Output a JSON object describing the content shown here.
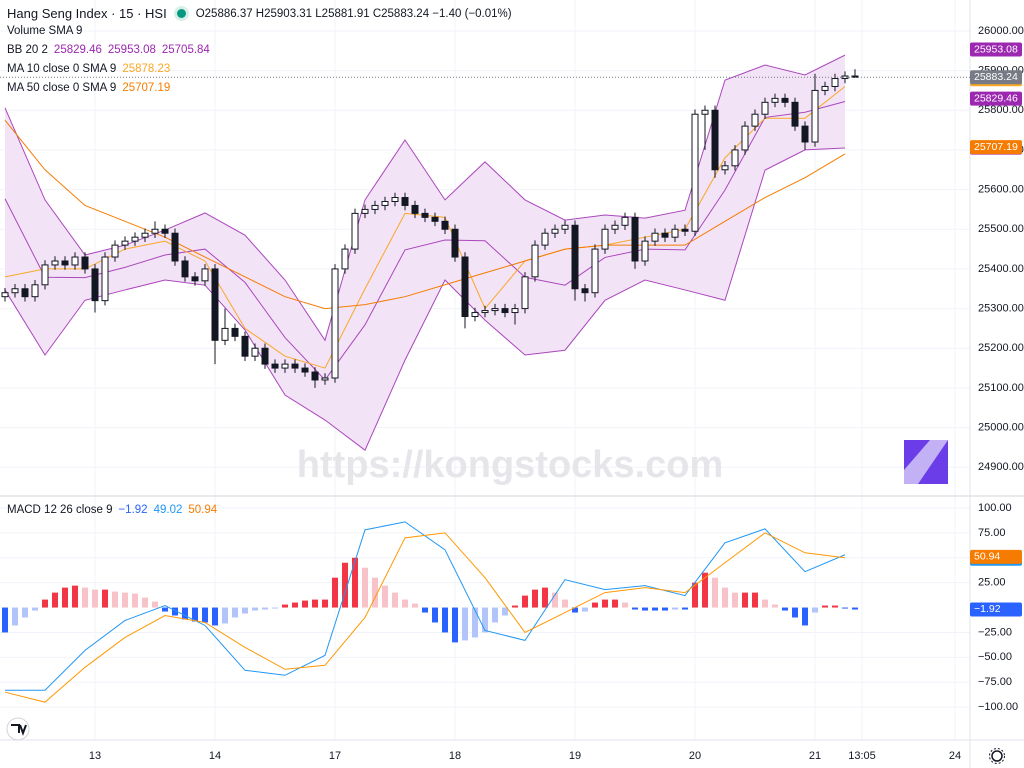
{
  "chart_data": {
    "type": "candlestick",
    "title": "Hang Seng Index · 15 · HSI",
    "ohlc_text": "O25886.37 H25903.31 L25881.91 C25883.24 −1.40 (−0.01%)",
    "volume_label": "Volume SMA 9",
    "watermark": "https://kongstocks.com",
    "up_color": "#ffffff",
    "down_color": "#131722",
    "wick_color": "#131722",
    "candles": {
      "open": [
        25330,
        25340,
        25350,
        25330,
        25360,
        25410,
        25420,
        25410,
        25430,
        25400,
        25320,
        25430,
        25460,
        25470,
        25480,
        25490,
        25500,
        25490,
        25420,
        25380,
        25370,
        25400,
        25220,
        25250,
        25230,
        25180,
        25200,
        25160,
        25150,
        25160,
        25150,
        25140,
        25120,
        25125,
        25400,
        25450,
        25540,
        25550,
        25560,
        25570,
        25580,
        25560,
        25540,
        25530,
        25520,
        25500,
        25430,
        25280,
        25290,
        25295,
        25300,
        25290,
        25300,
        25380,
        25460,
        25490,
        25500,
        25510,
        25350,
        25340,
        25450,
        25500,
        25510,
        25530,
        25420,
        25470,
        25490,
        25480,
        25500,
        25495,
        25790,
        25800,
        25650,
        25660,
        25700,
        25760,
        25790,
        25820,
        25830,
        25820,
        25760,
        25720,
        25850,
        25860,
        25880,
        25886.37
      ],
      "high": [
        25352,
        25362,
        25362,
        25372,
        25422,
        25432,
        25432,
        25442,
        25442,
        25412,
        25442,
        25472,
        25482,
        25492,
        25502,
        25520,
        25512,
        25502,
        25432,
        25392,
        25412,
        25412,
        25300,
        25262,
        25242,
        25212,
        25212,
        25172,
        25172,
        25172,
        25162,
        25152,
        25137,
        25412,
        25462,
        25552,
        25562,
        25572,
        25582,
        25592,
        25592,
        25572,
        25552,
        25542,
        25532,
        25512,
        25442,
        25302,
        25307,
        25312,
        25312,
        25312,
        25392,
        25472,
        25502,
        25512,
        25522,
        25522,
        25362,
        25462,
        25512,
        25522,
        25542,
        25542,
        25482,
        25502,
        25502,
        25512,
        25512,
        25802,
        25812,
        25812,
        25672,
        25712,
        25772,
        25802,
        25832,
        25842,
        25842,
        25832,
        25772,
        25892,
        25872,
        25892,
        25898,
        25903.31
      ],
      "low": [
        25318,
        25328,
        25318,
        25318,
        25348,
        25398,
        25398,
        25398,
        25388,
        25290,
        25308,
        25418,
        25448,
        25458,
        25468,
        25478,
        25478,
        25408,
        25368,
        25358,
        25358,
        25160,
        25208,
        25218,
        25168,
        25168,
        25148,
        25138,
        25138,
        25138,
        25128,
        25100,
        25108,
        25113,
        25388,
        25438,
        25528,
        25538,
        25548,
        25558,
        25548,
        25528,
        25518,
        25508,
        25488,
        25418,
        25250,
        25268,
        25278,
        25283,
        25278,
        25260,
        25288,
        25368,
        25448,
        25478,
        25488,
        25320,
        25318,
        25328,
        25438,
        25488,
        25498,
        25400,
        25408,
        25458,
        25468,
        25468,
        25483,
        25483,
        25700,
        25630,
        25638,
        25648,
        25688,
        25748,
        25778,
        25808,
        25808,
        25748,
        25700,
        25708,
        25838,
        25848,
        25868,
        25881.91
      ],
      "close": [
        25340,
        25350,
        25330,
        25360,
        25410,
        25420,
        25410,
        25430,
        25400,
        25320,
        25430,
        25460,
        25470,
        25480,
        25490,
        25500,
        25490,
        25420,
        25380,
        25370,
        25400,
        25220,
        25250,
        25230,
        25180,
        25200,
        25160,
        25150,
        25160,
        25150,
        25140,
        25120,
        25125,
        25400,
        25450,
        25540,
        25550,
        25560,
        25570,
        25580,
        25560,
        25540,
        25530,
        25520,
        25500,
        25430,
        25280,
        25290,
        25295,
        25300,
        25290,
        25300,
        25380,
        25460,
        25490,
        25500,
        25510,
        25350,
        25340,
        25450,
        25500,
        25510,
        25530,
        25420,
        25470,
        25490,
        25480,
        25500,
        25495,
        25790,
        25800,
        25650,
        25660,
        25700,
        25760,
        25790,
        25820,
        25830,
        25820,
        25760,
        25720,
        25850,
        25860,
        25880,
        25886.37,
        25883.24
      ]
    },
    "xlim": [
      -0.5,
      96.5
    ],
    "xticks": [
      {
        "value": 9,
        "label": "13"
      },
      {
        "value": 21,
        "label": "14"
      },
      {
        "value": 33,
        "label": "17"
      },
      {
        "value": 45,
        "label": "18"
      },
      {
        "value": 57,
        "label": "19"
      },
      {
        "value": 69,
        "label": "20"
      },
      {
        "value": 81,
        "label": "21"
      },
      {
        "value": 85.7,
        "label": "13:05"
      },
      {
        "value": 95,
        "label": "24"
      }
    ],
    "ylim": [
      24830,
      26078
    ],
    "yticks": [
      {
        "value": 26000,
        "label": "26000.00"
      },
      {
        "value": 25900,
        "label": "25900.00"
      },
      {
        "value": 25800,
        "label": "25800.00"
      },
      {
        "value": 25700,
        "label": "25700.00"
      },
      {
        "value": 25600,
        "label": "25600.00"
      },
      {
        "value": 25500,
        "label": "25500.00"
      },
      {
        "value": 25400,
        "label": "25400.00"
      },
      {
        "value": 25300,
        "label": "25300.00"
      },
      {
        "value": 25200,
        "label": "25200.00"
      },
      {
        "value": 25100,
        "label": "25100.00"
      },
      {
        "value": 25000,
        "label": "25000.00"
      },
      {
        "value": 24900,
        "label": "24900.00"
      }
    ],
    "grid": true,
    "last_price": 25883.24,
    "last_color": "#787b86",
    "band_fill": "#f3e3f7",
    "overlays": {
      "x": [
        0,
        4,
        8,
        12,
        16,
        20,
        24,
        28,
        32,
        36,
        40,
        44,
        48,
        52,
        56,
        60,
        64,
        68,
        72,
        76,
        80,
        84
      ],
      "series": [
        {
          "color": "#ab47bc",
          "values": [
            25806,
            25574,
            25435,
            25460,
            25498,
            25541,
            25485,
            25372,
            25220,
            25574,
            25725,
            25574,
            25670,
            25574,
            25523,
            25536,
            25528,
            25548,
            25876,
            25914,
            25889,
            25939
          ]
        },
        {
          "color": "#ab47bc",
          "values": [
            25577,
            25379,
            25378,
            25404,
            25435,
            25450,
            25366,
            25227,
            25120,
            25259,
            25448,
            25473,
            25471,
            25379,
            25359,
            25429,
            25450,
            25448,
            25599,
            25782,
            25795,
            25822
          ]
        },
        {
          "color": "#ab47bc",
          "values": [
            25347,
            25183,
            25321,
            25347,
            25372,
            25359,
            25246,
            25082,
            25019,
            24943,
            25170,
            25372,
            25271,
            25183,
            25195,
            25321,
            25372,
            25347,
            25321,
            25649,
            25700,
            25705
          ]
        },
        {
          "color": "#f9a825",
          "values": [
            25380,
            25400,
            25400,
            25450,
            25470,
            25420,
            25250,
            25180,
            25150,
            25350,
            25540,
            25530,
            25300,
            25420,
            25450,
            25460,
            25480,
            25500,
            25680,
            25780,
            25780,
            25860
          ]
        },
        {
          "color": "#f57c00",
          "values": [
            25775,
            25650,
            25560,
            25520,
            25480,
            25430,
            25380,
            25330,
            25300,
            25310,
            25330,
            25360,
            25390,
            25420,
            25450,
            25460,
            25460,
            25460,
            25520,
            25580,
            25630,
            25690
          ]
        }
      ]
    },
    "indicators": [
      {
        "label": "BB 20 2",
        "color": "#9c27b0",
        "values": [
          25829.46,
          25953.08,
          25705.84
        ]
      },
      {
        "label": "MA 10 close 0 SMA 9",
        "color": "#f9a825",
        "values": [
          25878.23
        ]
      },
      {
        "label": "MA 50 close 0 SMA 9",
        "color": "#f57c00",
        "values": [
          25707.19
        ]
      }
    ],
    "macd": {
      "label": "MACD 12 26 close 9",
      "ylim": [
        -133,
        111
      ],
      "yticks": [
        {
          "value": 100,
          "label": "100.00"
        },
        {
          "value": 75,
          "label": "75.00"
        },
        {
          "value": 50,
          "label": "50.00"
        },
        {
          "value": 25,
          "label": "25.00"
        },
        {
          "value": -25,
          "label": "−25.00"
        },
        {
          "value": -50,
          "label": "−50.00"
        },
        {
          "value": -75,
          "label": "−75.00"
        },
        {
          "value": -100,
          "label": "−100.00"
        }
      ],
      "histogram": [
        -25,
        -18,
        -10,
        -3,
        8,
        15,
        20,
        22,
        20,
        18,
        18,
        16,
        15,
        14,
        10,
        6,
        -4,
        -8,
        -12,
        -14,
        -15,
        -18,
        -16,
        -10,
        -6,
        -3,
        -2,
        -1,
        3,
        5,
        7,
        8,
        8,
        30,
        45,
        50,
        40,
        30,
        22,
        15,
        8,
        4,
        -5,
        -15,
        -25,
        -35,
        -33,
        -30,
        -25,
        -15,
        -8,
        2,
        12,
        18,
        20,
        15,
        8,
        -5,
        -4,
        5,
        8,
        8,
        5,
        -2,
        -3,
        -3,
        -3,
        -2,
        -2,
        25,
        35,
        30,
        20,
        15,
        15,
        15,
        8,
        3,
        -3,
        -10,
        -18,
        -5,
        2,
        2,
        -1,
        -2
      ],
      "hist_colors": {
        "up_grow": "#f23645",
        "up_fall": "#f8c3c8",
        "down_grow": "#2962ff",
        "down_fall": "#b2c5fb"
      },
      "x": [
        0,
        4,
        8,
        12,
        16,
        20,
        24,
        28,
        32,
        36,
        40,
        44,
        48,
        52,
        56,
        60,
        64,
        68,
        72,
        76,
        80,
        84
      ],
      "series": [
        {
          "color": "#2196f3",
          "values": [
            -83,
            -83,
            -43,
            -13,
            2,
            -18,
            -63,
            -68,
            -48,
            78,
            86,
            58,
            -23,
            -33,
            28,
            18,
            22,
            12,
            65,
            79,
            36,
            53
          ]
        },
        {
          "color": "#ff9800",
          "values": [
            -85,
            -95,
            -60,
            -30,
            -8,
            -15,
            -40,
            -62,
            -58,
            -10,
            70,
            75,
            30,
            -25,
            -5,
            15,
            20,
            15,
            45,
            75,
            55,
            50
          ]
        }
      ],
      "last_values": [
        {
          "value": -1.92,
          "label": "−1.92",
          "color": "#2962ff"
        },
        {
          "value": 49.02,
          "color": "#2196f3"
        },
        {
          "value": 50.94,
          "color": "#f57c00"
        }
      ]
    }
  }
}
